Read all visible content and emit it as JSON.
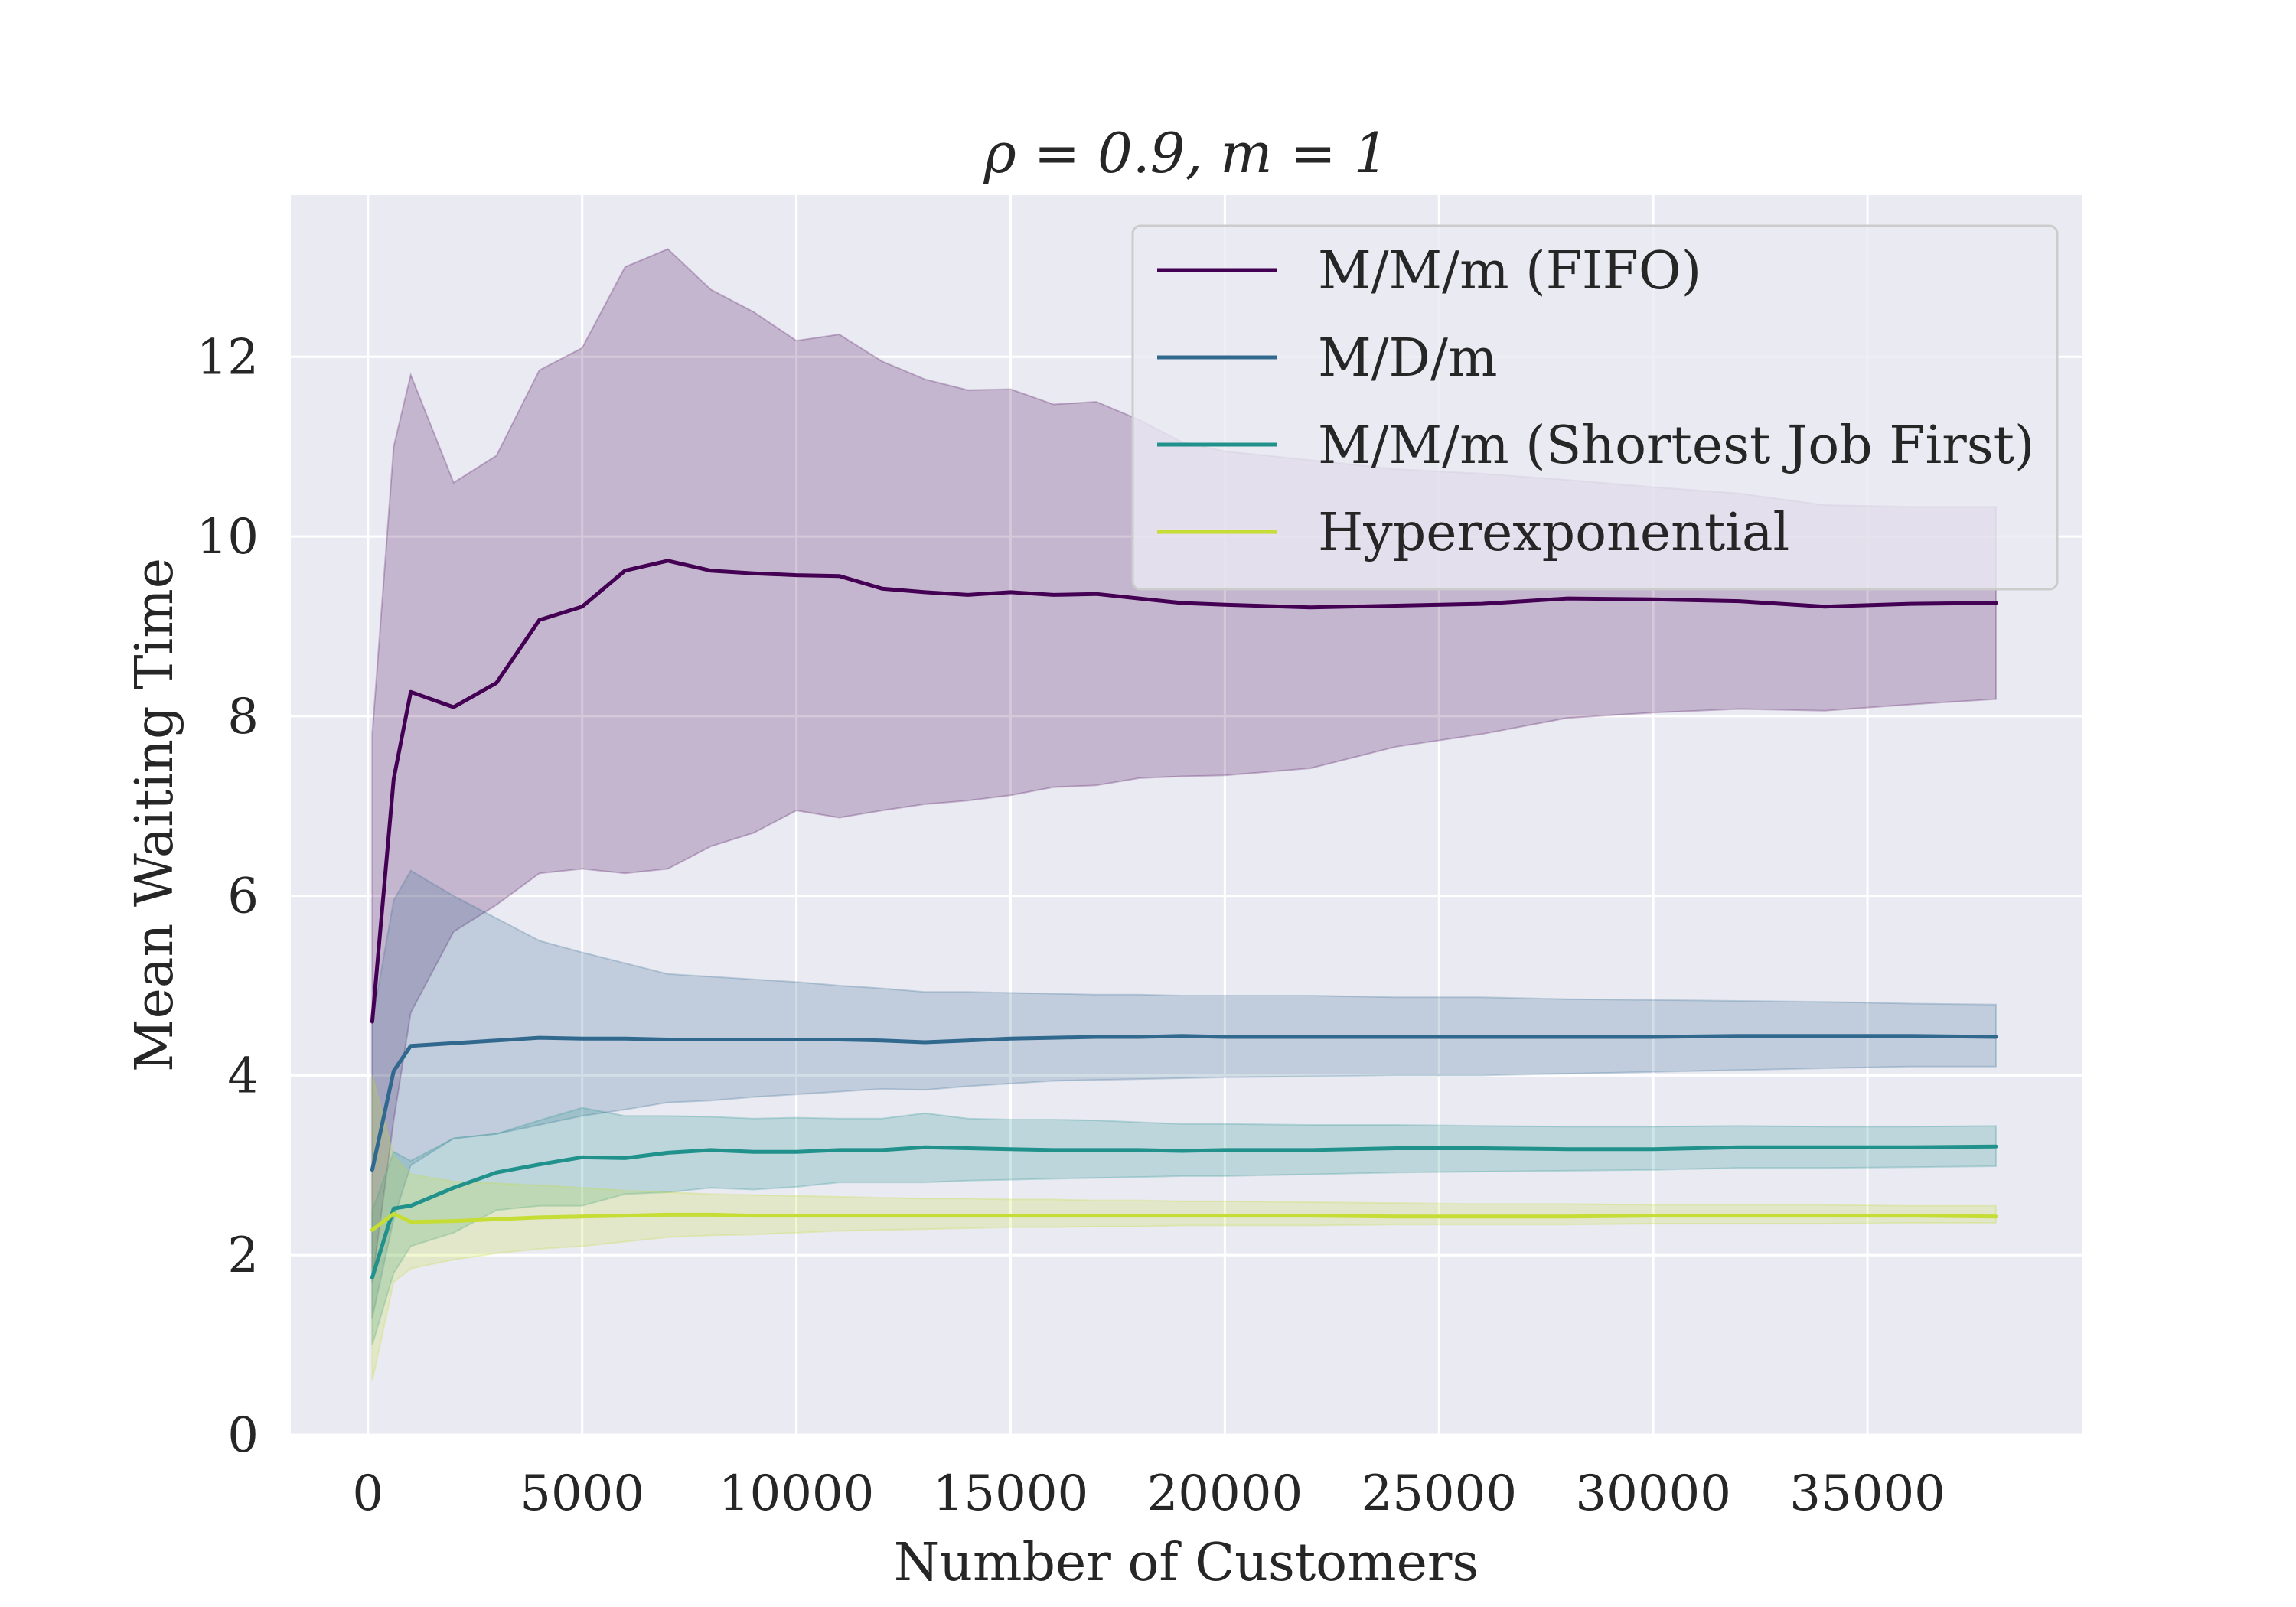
{
  "chart_data": {
    "type": "line",
    "title": "ρ = 0.9, m = 1",
    "xlabel": "Number of Customers",
    "ylabel": "Mean Waiting Time",
    "xlim": [
      -1800,
      40000
    ],
    "ylim": [
      0,
      13.8
    ],
    "xticks": [
      0,
      5000,
      10000,
      15000,
      20000,
      25000,
      30000,
      35000
    ],
    "yticks": [
      0,
      2,
      4,
      6,
      8,
      10,
      12
    ],
    "grid": true,
    "legend_position": "top-right",
    "background": "#eaeaf2",
    "series": [
      {
        "name": "M/M/m (FIFO)",
        "color": "#440154",
        "x": [
          100,
          600,
          1000,
          2000,
          3000,
          4000,
          5000,
          6000,
          7000,
          8000,
          9000,
          10000,
          11000,
          12000,
          13000,
          14000,
          15000,
          16000,
          17000,
          18000,
          19000,
          20000,
          22000,
          24000,
          26000,
          28000,
          30000,
          32000,
          34000,
          36000,
          38000
        ],
        "y": [
          4.6,
          7.3,
          8.27,
          8.1,
          8.37,
          9.07,
          9.22,
          9.62,
          9.73,
          9.62,
          9.59,
          9.57,
          9.56,
          9.42,
          9.38,
          9.35,
          9.38,
          9.35,
          9.36,
          9.31,
          9.26,
          9.24,
          9.21,
          9.23,
          9.25,
          9.31,
          9.3,
          9.28,
          9.22,
          9.25,
          9.26
        ],
        "lower": [
          1.7,
          3.5,
          4.7,
          5.6,
          5.9,
          6.25,
          6.3,
          6.25,
          6.3,
          6.55,
          6.7,
          6.95,
          6.87,
          6.95,
          7.02,
          7.06,
          7.12,
          7.21,
          7.23,
          7.31,
          7.33,
          7.34,
          7.42,
          7.66,
          7.8,
          7.98,
          8.04,
          8.08,
          8.06,
          8.13,
          8.19
        ],
        "upper": [
          7.8,
          11.0,
          11.8,
          10.6,
          10.9,
          11.85,
          12.1,
          13.0,
          13.2,
          12.75,
          12.5,
          12.18,
          12.25,
          11.95,
          11.75,
          11.63,
          11.64,
          11.47,
          11.5,
          11.3,
          11.05,
          10.95,
          10.85,
          10.75,
          10.7,
          10.63,
          10.55,
          10.48,
          10.35,
          10.33,
          10.33
        ]
      },
      {
        "name": "M/D/m",
        "color": "#31688e",
        "x": [
          100,
          600,
          1000,
          2000,
          3000,
          4000,
          5000,
          6000,
          7000,
          8000,
          9000,
          10000,
          11000,
          12000,
          13000,
          14000,
          15000,
          16000,
          17000,
          18000,
          19000,
          20000,
          22000,
          24000,
          26000,
          28000,
          30000,
          32000,
          34000,
          36000,
          38000
        ],
        "y": [
          2.95,
          4.05,
          4.33,
          4.36,
          4.39,
          4.42,
          4.41,
          4.41,
          4.4,
          4.4,
          4.4,
          4.4,
          4.4,
          4.39,
          4.37,
          4.39,
          4.41,
          4.42,
          4.43,
          4.43,
          4.44,
          4.43,
          4.43,
          4.43,
          4.43,
          4.43,
          4.43,
          4.44,
          4.44,
          4.44,
          4.43
        ],
        "lower": [
          1.3,
          2.4,
          3.0,
          3.3,
          3.35,
          3.45,
          3.55,
          3.62,
          3.7,
          3.72,
          3.76,
          3.79,
          3.82,
          3.85,
          3.84,
          3.88,
          3.91,
          3.94,
          3.95,
          3.96,
          3.97,
          3.98,
          3.99,
          4.0,
          4.0,
          4.02,
          4.04,
          4.06,
          4.08,
          4.1,
          4.1
        ],
        "upper": [
          4.6,
          5.95,
          6.28,
          6.0,
          5.75,
          5.5,
          5.37,
          5.25,
          5.13,
          5.1,
          5.07,
          5.04,
          5.0,
          4.97,
          4.93,
          4.93,
          4.92,
          4.91,
          4.9,
          4.9,
          4.89,
          4.89,
          4.89,
          4.87,
          4.87,
          4.85,
          4.84,
          4.83,
          4.82,
          4.8,
          4.79
        ]
      },
      {
        "name": "M/M/m (Shortest Job First)",
        "color": "#21918c",
        "x": [
          100,
          600,
          1000,
          2000,
          3000,
          4000,
          5000,
          6000,
          7000,
          8000,
          9000,
          10000,
          11000,
          12000,
          13000,
          14000,
          15000,
          16000,
          17000,
          18000,
          19000,
          20000,
          22000,
          24000,
          26000,
          28000,
          30000,
          32000,
          34000,
          36000,
          38000
        ],
        "y": [
          1.75,
          2.52,
          2.55,
          2.75,
          2.92,
          3.01,
          3.09,
          3.08,
          3.14,
          3.17,
          3.15,
          3.15,
          3.17,
          3.17,
          3.2,
          3.19,
          3.18,
          3.17,
          3.17,
          3.17,
          3.16,
          3.17,
          3.17,
          3.19,
          3.19,
          3.18,
          3.18,
          3.2,
          3.2,
          3.2,
          3.21
        ],
        "lower": [
          1.0,
          1.8,
          2.1,
          2.25,
          2.5,
          2.55,
          2.55,
          2.68,
          2.7,
          2.75,
          2.73,
          2.76,
          2.81,
          2.81,
          2.81,
          2.83,
          2.84,
          2.85,
          2.86,
          2.87,
          2.88,
          2.88,
          2.9,
          2.92,
          2.93,
          2.94,
          2.95,
          2.97,
          2.97,
          2.98,
          2.99
        ],
        "upper": [
          2.5,
          3.15,
          3.05,
          3.3,
          3.35,
          3.5,
          3.64,
          3.55,
          3.55,
          3.54,
          3.52,
          3.53,
          3.52,
          3.52,
          3.58,
          3.52,
          3.51,
          3.51,
          3.5,
          3.48,
          3.46,
          3.46,
          3.45,
          3.45,
          3.44,
          3.43,
          3.43,
          3.44,
          3.43,
          3.43,
          3.44
        ]
      },
      {
        "name": "Hyperexponential",
        "color": "#c5dd34",
        "x": [
          100,
          600,
          1000,
          2000,
          3000,
          4000,
          5000,
          6000,
          7000,
          8000,
          9000,
          10000,
          11000,
          12000,
          13000,
          14000,
          15000,
          16000,
          17000,
          18000,
          19000,
          20000,
          22000,
          24000,
          26000,
          28000,
          30000,
          32000,
          34000,
          36000,
          38000
        ],
        "y": [
          2.28,
          2.46,
          2.37,
          2.38,
          2.4,
          2.42,
          2.43,
          2.44,
          2.45,
          2.45,
          2.44,
          2.44,
          2.44,
          2.44,
          2.44,
          2.44,
          2.44,
          2.44,
          2.44,
          2.44,
          2.44,
          2.44,
          2.44,
          2.43,
          2.43,
          2.43,
          2.44,
          2.44,
          2.44,
          2.44,
          2.43
        ],
        "lower": [
          0.6,
          1.7,
          1.85,
          1.95,
          2.02,
          2.07,
          2.1,
          2.15,
          2.2,
          2.22,
          2.23,
          2.25,
          2.27,
          2.28,
          2.29,
          2.3,
          2.31,
          2.31,
          2.32,
          2.32,
          2.33,
          2.33,
          2.33,
          2.34,
          2.34,
          2.34,
          2.35,
          2.35,
          2.35,
          2.36,
          2.36
        ],
        "upper": [
          4.0,
          3.1,
          2.9,
          2.82,
          2.8,
          2.78,
          2.75,
          2.72,
          2.7,
          2.68,
          2.67,
          2.66,
          2.65,
          2.64,
          2.63,
          2.63,
          2.62,
          2.62,
          2.61,
          2.61,
          2.6,
          2.6,
          2.59,
          2.58,
          2.57,
          2.57,
          2.56,
          2.56,
          2.56,
          2.55,
          2.55
        ]
      }
    ]
  }
}
